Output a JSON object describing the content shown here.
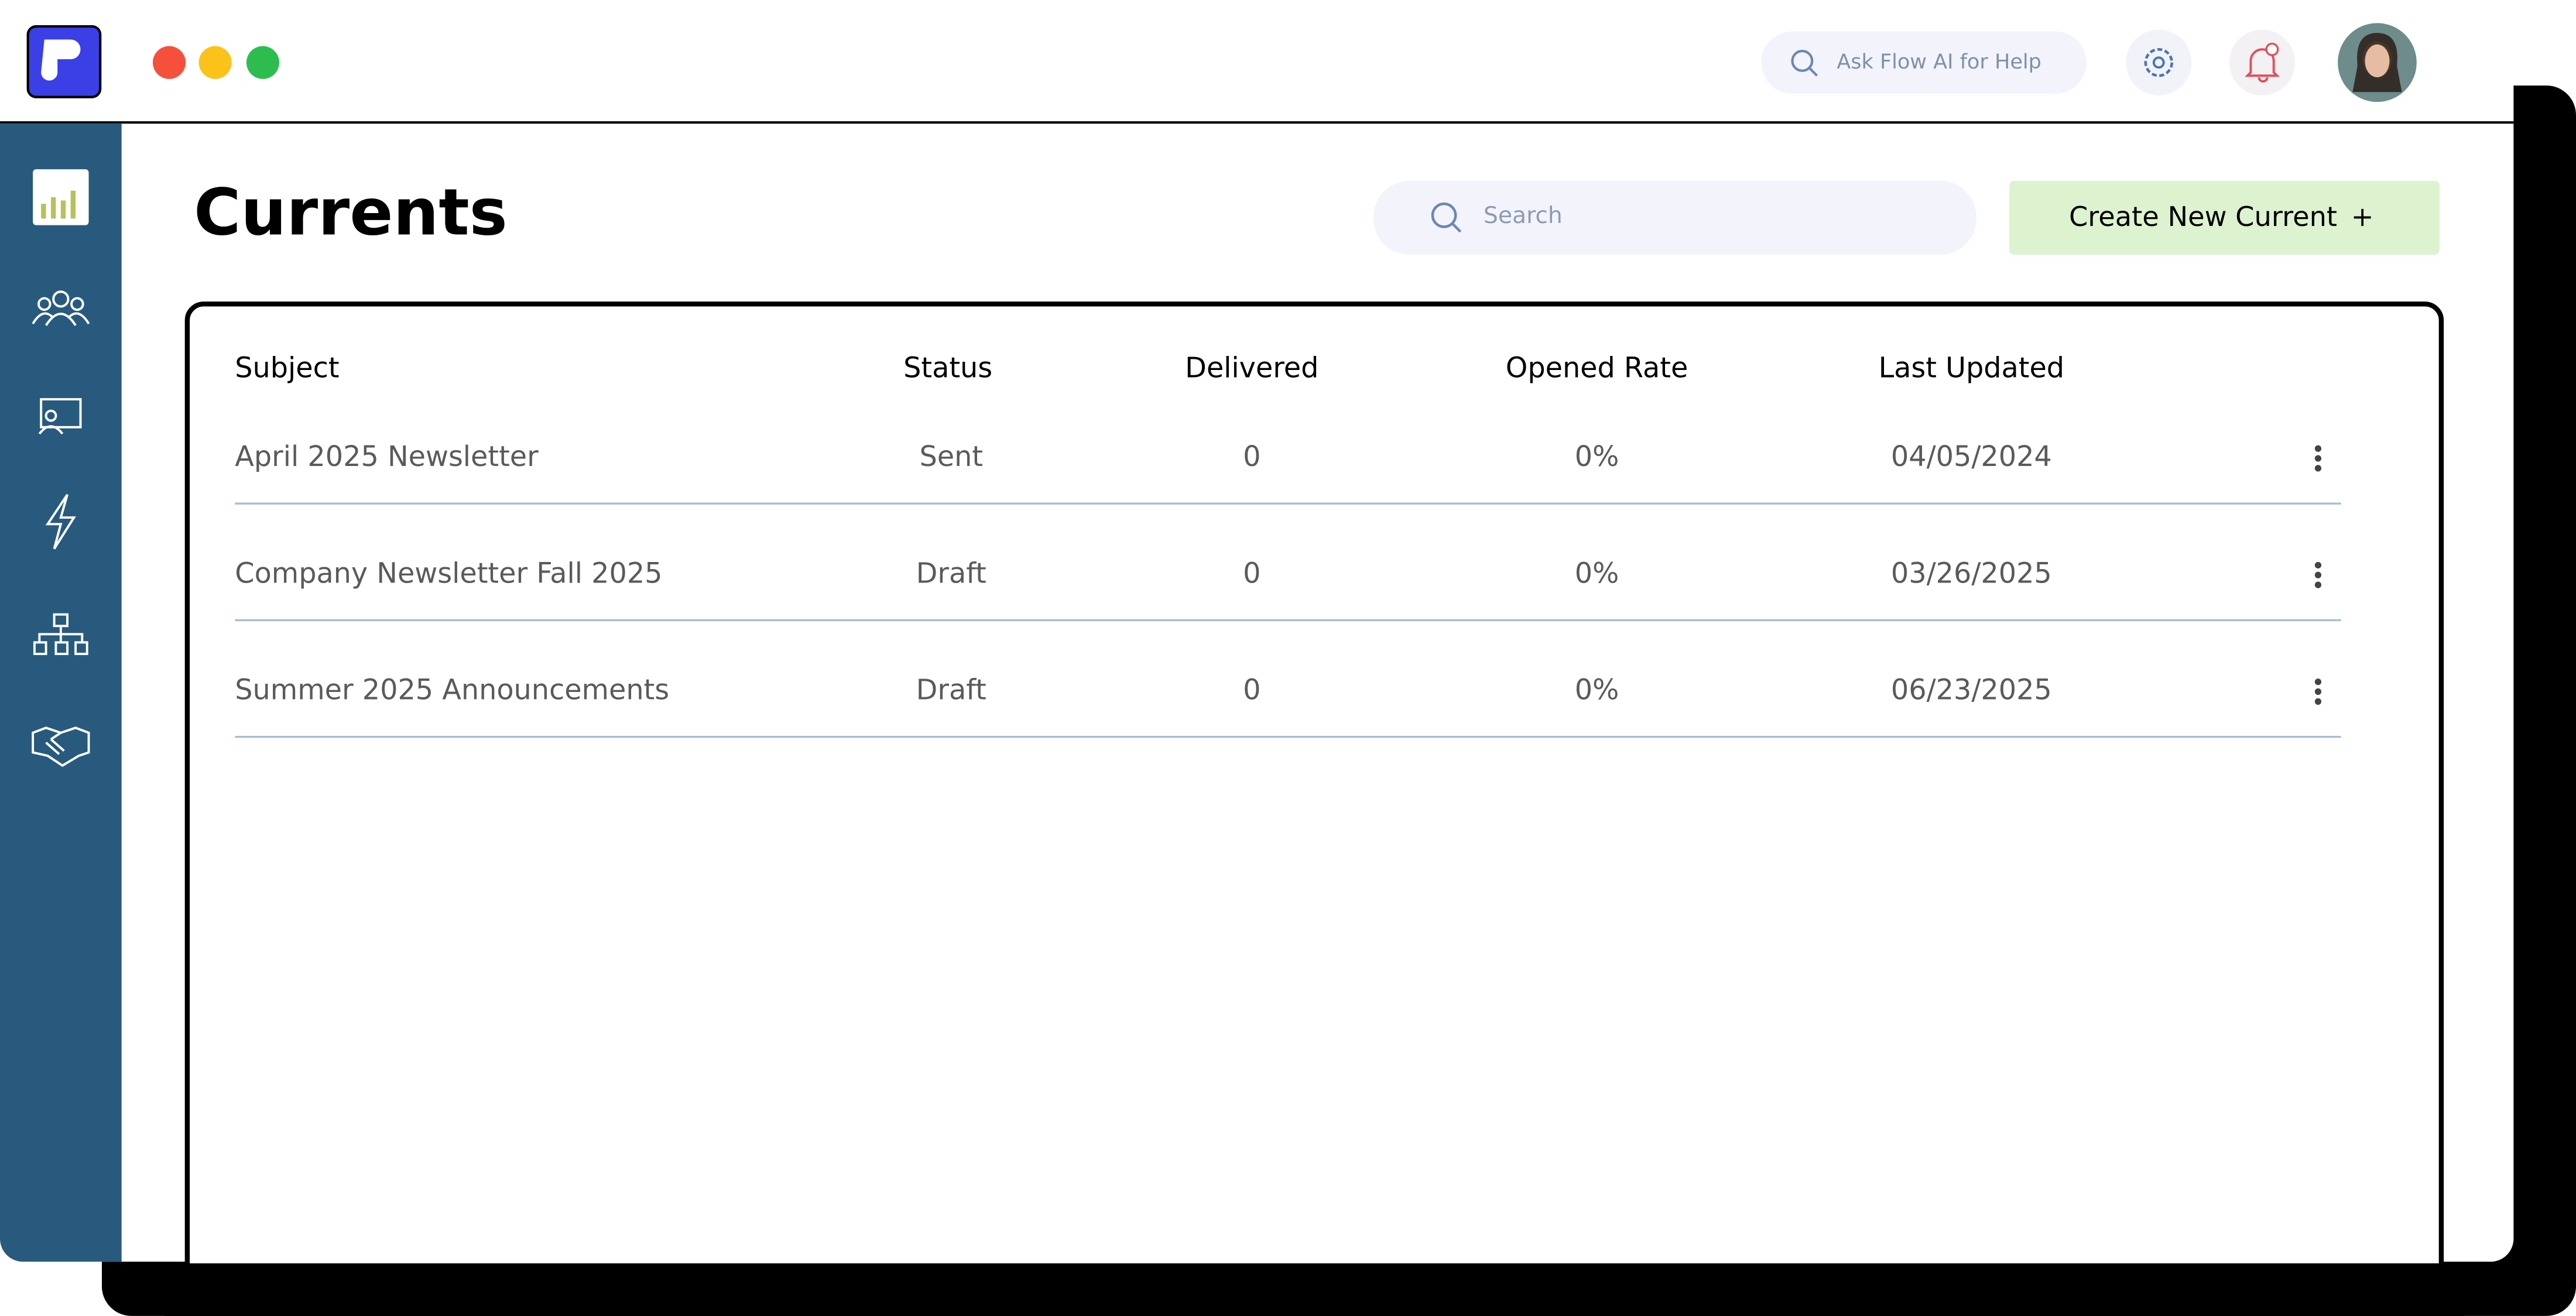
{
  "header": {
    "search_placeholder": "Ask Flow AI for Help"
  },
  "page": {
    "title": "Currents",
    "search_placeholder": "Search",
    "create_button": "Create New Current",
    "create_icon": "+"
  },
  "table": {
    "columns": [
      "Subject",
      "Status",
      "Delivered",
      "Opened Rate",
      "Last Updated"
    ],
    "rows": [
      [
        "April 2025 Newsletter",
        "Sent",
        "0",
        "0%",
        "04/05/2024"
      ],
      [
        "Company Newsletter Fall 2025",
        "Draft",
        "0",
        "0%",
        "03/26/2025"
      ],
      [
        "Summer 2025 Announcements",
        "Draft",
        "0",
        "0%",
        "06/23/2025"
      ]
    ]
  }
}
